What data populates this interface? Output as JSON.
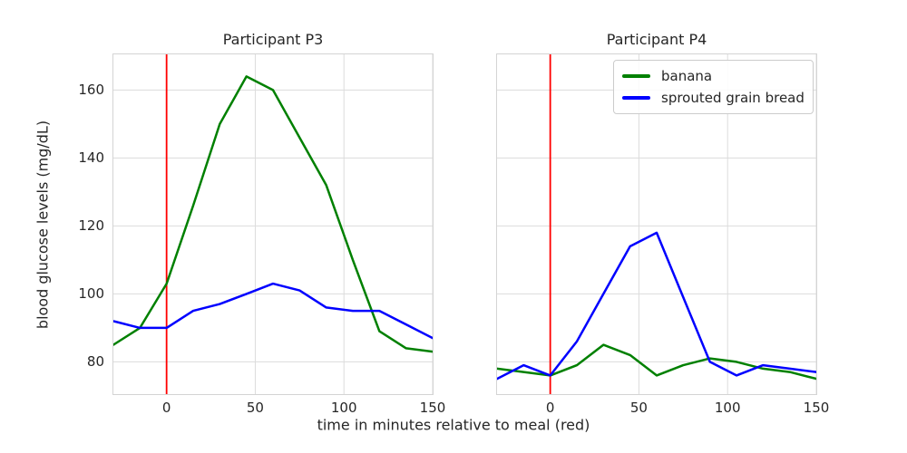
{
  "figure": {
    "xlabel": "time in minutes relative to meal (red)",
    "ylabel": "blood glucose levels (mg/dL)"
  },
  "colors": {
    "banana": "#008000",
    "sprouted_grain_bread": "#0000ff",
    "meal_marker": "#ff0000",
    "grid": "#dcdcdc",
    "spine": "#d4d4d4",
    "text": "#262626"
  },
  "legend": {
    "entries": [
      {
        "label": "banana",
        "color": "#008000"
      },
      {
        "label": "sprouted grain bread",
        "color": "#0000ff"
      }
    ]
  },
  "chart_data": [
    {
      "type": "line",
      "title": "Participant P3",
      "xlabel": "time in minutes relative to meal (red)",
      "ylabel": "blood glucose levels (mg/dL)",
      "x": [
        -30,
        -15,
        0,
        15,
        30,
        45,
        60,
        75,
        90,
        105,
        120,
        135,
        150
      ],
      "series": [
        {
          "name": "banana",
          "color": "#008000",
          "values": [
            85,
            90,
            103,
            126,
            150,
            164,
            160,
            146,
            132,
            110,
            89,
            84,
            83
          ]
        },
        {
          "name": "sprouted grain bread",
          "color": "#0000ff",
          "values": [
            92,
            90,
            90,
            95,
            97,
            100,
            103,
            101,
            96,
            95,
            95,
            91,
            87
          ]
        }
      ],
      "vline": {
        "x": 0,
        "color": "#ff0000"
      },
      "xlim": [
        -30,
        150
      ],
      "ylim": [
        70.5,
        170.5
      ],
      "xticks": [
        0,
        50,
        100,
        150
      ],
      "yticks": [
        80,
        100,
        120,
        140,
        160
      ],
      "grid": true,
      "show_ytick_labels": true,
      "legend": false
    },
    {
      "type": "line",
      "title": "Participant P4",
      "xlabel": "time in minutes relative to meal (red)",
      "ylabel": "blood glucose levels (mg/dL)",
      "x": [
        -30,
        -15,
        0,
        15,
        30,
        45,
        60,
        75,
        90,
        105,
        120,
        135,
        150
      ],
      "series": [
        {
          "name": "banana",
          "color": "#008000",
          "values": [
            78,
            77,
            76,
            79,
            85,
            82,
            76,
            79,
            81,
            80,
            78,
            77,
            75
          ]
        },
        {
          "name": "sprouted grain bread",
          "color": "#0000ff",
          "values": [
            75,
            79,
            76,
            86,
            100,
            114,
            118,
            99,
            80,
            76,
            79,
            78,
            77
          ]
        }
      ],
      "vline": {
        "x": 0,
        "color": "#ff0000"
      },
      "xlim": [
        -30,
        150
      ],
      "ylim": [
        70.5,
        170.5
      ],
      "xticks": [
        0,
        50,
        100,
        150
      ],
      "yticks": [
        80,
        100,
        120,
        140,
        160
      ],
      "grid": true,
      "show_ytick_labels": false,
      "legend": {
        "position": "upper right"
      }
    }
  ]
}
